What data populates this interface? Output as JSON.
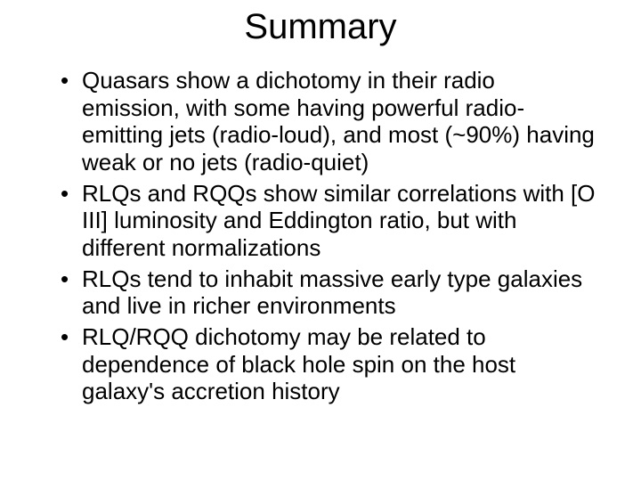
{
  "slide": {
    "title": "Summary",
    "bullets": [
      "Quasars show a dichotomy in their radio emission, with some having powerful radio-emitting jets (radio-loud), and most (~90%) having weak or no jets (radio-quiet)",
      "RLQs and RQQs show similar correlations with [O III] luminosity and Eddington ratio, but with different normalizations",
      "RLQs tend to inhabit massive early type galaxies and live in richer environments",
      "RLQ/RQQ dichotomy may be related to dependence of black hole spin on the host galaxy's accretion history"
    ],
    "colors": {
      "background": "#ffffff",
      "text": "#000000"
    },
    "typography": {
      "title_fontsize": 40,
      "bullet_fontsize": 26,
      "font_family": "Arial"
    }
  }
}
